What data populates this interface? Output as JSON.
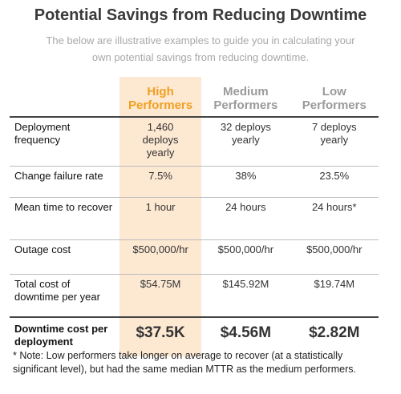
{
  "header": {
    "title": "Potential Savings from Reducing Downtime",
    "subtitle": "The below are illustrative examples to guide you in calculating your own potential savings from reducing downtime."
  },
  "table": {
    "columns": [
      "High Performers",
      "Medium Performers",
      "Low Performers"
    ],
    "rows": [
      [
        "Deployment frequency",
        "1,460 deploys yearly",
        "32 deploys yearly",
        "7 deploys yearly"
      ],
      [
        "Change failure rate",
        "7.5%",
        "38%",
        "23.5%"
      ],
      [
        "Mean time to recover",
        "1 hour",
        "24 hours",
        "24 hours*"
      ],
      [
        "Outage cost",
        "$500,000/hr",
        "$500,000/hr",
        "$500,000/hr"
      ],
      [
        "Total cost of downtime per year",
        "$54.75M",
        "$145.92M",
        "$19.74M"
      ],
      [
        "Downtime cost per deployment",
        "$37.5K",
        "$4.56M",
        "$2.82M"
      ]
    ]
  },
  "footnote": "* Note: Low performers take longer on average to recover (at a statistically significant level), but had the same median MTTR as the medium performers."
}
